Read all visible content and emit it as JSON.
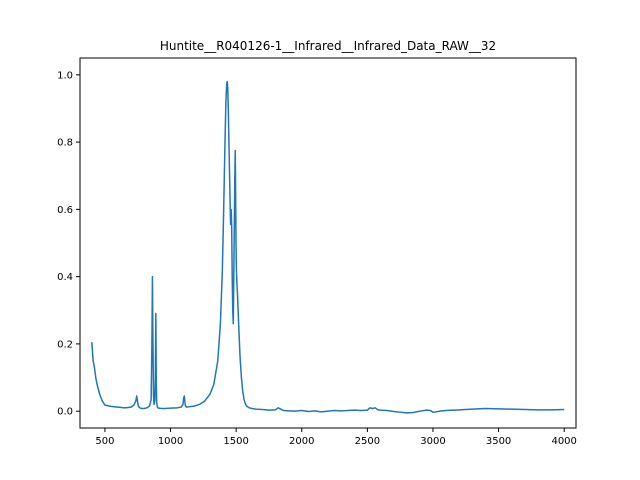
{
  "chart_data": {
    "type": "line",
    "title": "Huntite__R040126-1__Infrared__Infrared_Data_RAW__32",
    "xlabel": "",
    "ylabel": "",
    "xlim": [
      310,
      4090
    ],
    "ylim": [
      -0.05,
      1.05
    ],
    "x_ticks": [
      500,
      1000,
      1500,
      2000,
      2500,
      3000,
      3500,
      4000
    ],
    "y_ticks": [
      0.0,
      0.2,
      0.4,
      0.6,
      0.8,
      1.0
    ],
    "x_tick_labels": [
      "500",
      "1000",
      "1500",
      "2000",
      "2500",
      "3000",
      "3500",
      "4000"
    ],
    "y_tick_labels": [
      "0.0",
      "0.2",
      "0.4",
      "0.6",
      "0.8",
      "1.0"
    ],
    "grid": false,
    "line_color": "#1f77b4",
    "series": [
      {
        "x": [
          400,
          410,
          420,
          430,
          440,
          450,
          460,
          480,
          500,
          550,
          600,
          650,
          700,
          720,
          735,
          742,
          748,
          755,
          765,
          780,
          800,
          820,
          840,
          852,
          858,
          862,
          866,
          870,
          874,
          880,
          884,
          888,
          891,
          894,
          898,
          902,
          910,
          930,
          960,
          1000,
          1050,
          1080,
          1095,
          1100,
          1105,
          1112,
          1120,
          1140,
          1180,
          1220,
          1260,
          1300,
          1330,
          1360,
          1380,
          1395,
          1405,
          1415,
          1422,
          1428,
          1432,
          1436,
          1440,
          1445,
          1450,
          1455,
          1458,
          1462,
          1466,
          1470,
          1474,
          1478,
          1482,
          1486,
          1490,
          1493,
          1496,
          1499,
          1502,
          1506,
          1510,
          1515,
          1520,
          1530,
          1540,
          1550,
          1560,
          1570,
          1580,
          1600,
          1620,
          1650,
          1700,
          1750,
          1800,
          1820,
          1840,
          1860,
          1900,
          1950,
          2000,
          2050,
          2100,
          2150,
          2200,
          2250,
          2300,
          2350,
          2400,
          2450,
          2500,
          2520,
          2540,
          2560,
          2580,
          2600,
          2650,
          2700,
          2750,
          2800,
          2850,
          2900,
          2950,
          2980,
          3000,
          3020,
          3050,
          3100,
          3200,
          3300,
          3400,
          3500,
          3600,
          3700,
          3800,
          3900,
          4000
        ],
        "y": [
          0.205,
          0.15,
          0.13,
          0.1,
          0.08,
          0.065,
          0.05,
          0.03,
          0.018,
          0.014,
          0.012,
          0.01,
          0.012,
          0.018,
          0.03,
          0.045,
          0.03,
          0.015,
          0.01,
          0.008,
          0.008,
          0.01,
          0.015,
          0.035,
          0.2,
          0.4,
          0.2,
          0.05,
          0.02,
          0.03,
          0.1,
          0.29,
          0.1,
          0.03,
          0.015,
          0.01,
          0.009,
          0.008,
          0.008,
          0.009,
          0.01,
          0.012,
          0.02,
          0.04,
          0.045,
          0.018,
          0.012,
          0.013,
          0.015,
          0.02,
          0.03,
          0.05,
          0.08,
          0.15,
          0.26,
          0.42,
          0.6,
          0.8,
          0.92,
          0.975,
          0.98,
          0.96,
          0.9,
          0.8,
          0.7,
          0.6,
          0.555,
          0.6,
          0.55,
          0.4,
          0.3,
          0.26,
          0.4,
          0.55,
          0.7,
          0.775,
          0.65,
          0.5,
          0.42,
          0.38,
          0.35,
          0.3,
          0.25,
          0.16,
          0.1,
          0.06,
          0.035,
          0.022,
          0.015,
          0.01,
          0.008,
          0.006,
          0.005,
          0.003,
          0.004,
          0.01,
          0.006,
          0.002,
          0.001,
          0.0,
          0.002,
          -0.001,
          0.001,
          -0.002,
          0.0,
          0.002,
          0.001,
          0.002,
          0.003,
          0.002,
          0.003,
          0.01,
          0.008,
          0.01,
          0.004,
          0.003,
          0.002,
          -0.001,
          -0.003,
          -0.005,
          -0.004,
          0.0,
          0.003,
          0.002,
          -0.003,
          -0.002,
          0.0,
          0.002,
          0.004,
          0.006,
          0.008,
          0.007,
          0.006,
          0.005,
          0.004,
          0.004,
          0.005
        ]
      }
    ]
  }
}
